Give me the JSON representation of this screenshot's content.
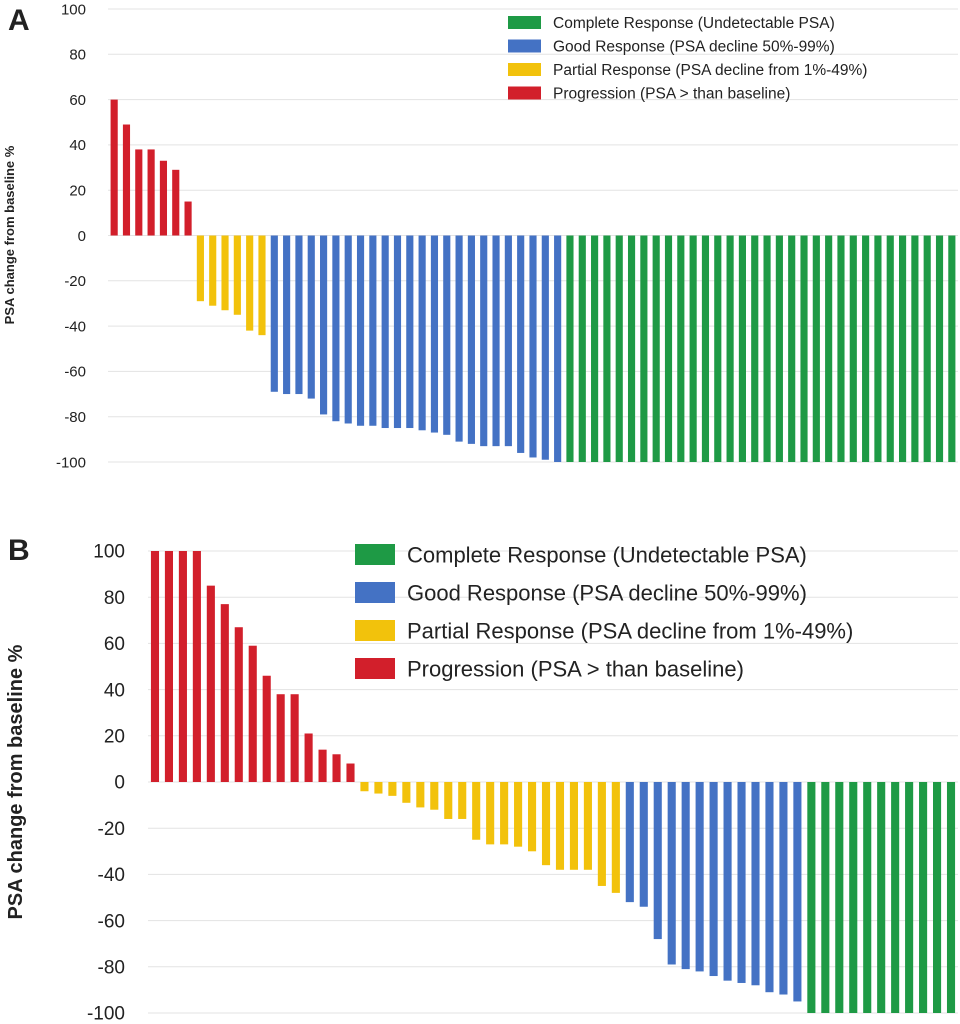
{
  "colors": {
    "complete": "#1e9a45",
    "good": "#4472c4",
    "partial": "#f2c20c",
    "progression": "#d21f2b",
    "grid": "#e3e3e3"
  },
  "legend": [
    {
      "key": "complete",
      "label": "Complete Response (Undetectable PSA)"
    },
    {
      "key": "good",
      "label": "Good Response (PSA decline 50%-99%)"
    },
    {
      "key": "partial",
      "label": "Partial Response (PSA decline from 1%-49%)"
    },
    {
      "key": "progression",
      "label": "Progression (PSA > than baseline)"
    }
  ],
  "chart_data": [
    {
      "type": "bar",
      "panel": "A",
      "ylabel": "PSA change from baseline %",
      "xlabel": "",
      "ylim": [
        -100,
        100
      ],
      "yticks": [
        100,
        80,
        60,
        40,
        20,
        0,
        -20,
        -40,
        -60,
        -80,
        -100
      ],
      "grid": true,
      "legend_position": "top-right",
      "series": [
        {
          "name": "Progression (PSA > than baseline)",
          "key": "progression",
          "values": [
            60,
            49,
            38,
            38,
            33,
            29,
            15
          ]
        },
        {
          "name": "Partial Response (PSA decline from 1%-49%)",
          "key": "partial",
          "values": [
            -29,
            -31,
            -33,
            -35,
            -42,
            -44
          ]
        },
        {
          "name": "Good Response (PSA decline 50%-99%)",
          "key": "good",
          "values": [
            -69,
            -70,
            -70,
            -72,
            -79,
            -82,
            -83,
            -84,
            -84,
            -85,
            -85,
            -85,
            -86,
            -87,
            -88,
            -91,
            -92,
            -93,
            -93,
            -93,
            -96,
            -98,
            -99,
            -100
          ]
        },
        {
          "name": "Complete Response (Undetectable PSA)",
          "key": "complete",
          "values": [
            -100,
            -100,
            -100,
            -100,
            -100,
            -100,
            -100,
            -100,
            -100,
            -100,
            -100,
            -100,
            -100,
            -100,
            -100,
            -100,
            -100,
            -100,
            -100,
            -100,
            -100,
            -100,
            -100,
            -100,
            -100,
            -100,
            -100,
            -100,
            -100,
            -100,
            -100,
            -100
          ]
        }
      ]
    },
    {
      "type": "bar",
      "panel": "B",
      "ylabel": "PSA change from baseline %",
      "xlabel": "",
      "ylim": [
        -100,
        100
      ],
      "yticks": [
        100,
        80,
        60,
        40,
        20,
        0,
        -20,
        -40,
        -60,
        -80,
        -100
      ],
      "grid": true,
      "legend_position": "top-right",
      "series": [
        {
          "name": "Progression (PSA > than baseline)",
          "key": "progression",
          "values": [
            100,
            100,
            100,
            100,
            85,
            77,
            67,
            59,
            46,
            38,
            38,
            21,
            14,
            12,
            8
          ]
        },
        {
          "name": "Partial Response (PSA decline from 1%-49%)",
          "key": "partial",
          "values": [
            -4,
            -5,
            -6,
            -9,
            -11,
            -12,
            -16,
            -16,
            -25,
            -27,
            -27,
            -28,
            -30,
            -36,
            -38,
            -38,
            -38,
            -45,
            -48
          ]
        },
        {
          "name": "Good Response (PSA decline 50%-99%)",
          "key": "good",
          "values": [
            -52,
            -54,
            -68,
            -79,
            -81,
            -82,
            -84,
            -86,
            -87,
            -88,
            -91,
            -92,
            -95
          ]
        },
        {
          "name": "Complete Response (Undetectable PSA)",
          "key": "complete",
          "values": [
            -100,
            -100,
            -100,
            -100,
            -100,
            -100,
            -100,
            -100,
            -100,
            -100,
            -100
          ]
        }
      ]
    }
  ]
}
